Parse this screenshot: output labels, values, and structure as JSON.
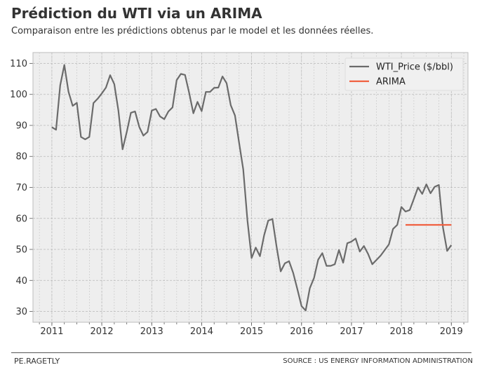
{
  "header": {
    "title": "Prédiction du WTI via un ARIMA",
    "subtitle": "Comparaison entre les prédictions obtenus par le model et les données réelles."
  },
  "footer": {
    "left": "PE.RAGETLY",
    "right": "SOURCE : US ENERGY INFORMATION ADMINISTRATION"
  },
  "chart_data": {
    "type": "line",
    "title": "Prédiction du WTI via un ARIMA",
    "subtitle": "Comparaison entre les prédictions obtenus par le model et les données réelles.",
    "xlim": [
      "2010-08-15",
      "2019-05-01"
    ],
    "ylim": [
      26.5,
      113.5
    ],
    "x_ticks": [
      "2011",
      "2012",
      "2013",
      "2014",
      "2015",
      "2016",
      "2017",
      "2018",
      "2019"
    ],
    "y_ticks": [
      30,
      40,
      50,
      60,
      70,
      80,
      90,
      100,
      110
    ],
    "grid": true,
    "legend_position": "top-right",
    "series": [
      {
        "name": "WTI_Price ($/bbl)",
        "color": "#6b6b6b",
        "x": [
          "2011-01",
          "2011-02",
          "2011-03",
          "2011-04",
          "2011-05",
          "2011-06",
          "2011-07",
          "2011-08",
          "2011-09",
          "2011-10",
          "2011-11",
          "2011-12",
          "2012-01",
          "2012-02",
          "2012-03",
          "2012-04",
          "2012-05",
          "2012-06",
          "2012-07",
          "2012-08",
          "2012-09",
          "2012-10",
          "2012-11",
          "2012-12",
          "2013-01",
          "2013-02",
          "2013-03",
          "2013-04",
          "2013-05",
          "2013-06",
          "2013-07",
          "2013-08",
          "2013-09",
          "2013-10",
          "2013-11",
          "2013-12",
          "2014-01",
          "2014-02",
          "2014-03",
          "2014-04",
          "2014-05",
          "2014-06",
          "2014-07",
          "2014-08",
          "2014-09",
          "2014-10",
          "2014-11",
          "2014-12",
          "2015-01",
          "2015-02",
          "2015-03",
          "2015-04",
          "2015-05",
          "2015-06",
          "2015-07",
          "2015-08",
          "2015-09",
          "2015-10",
          "2015-11",
          "2015-12",
          "2016-01",
          "2016-02",
          "2016-03",
          "2016-04",
          "2016-05",
          "2016-06",
          "2016-07",
          "2016-08",
          "2016-09",
          "2016-10",
          "2016-11",
          "2016-12",
          "2017-01",
          "2017-02",
          "2017-03",
          "2017-04",
          "2017-05",
          "2017-06",
          "2017-07",
          "2017-08",
          "2017-09",
          "2017-10",
          "2017-11",
          "2017-12",
          "2018-01",
          "2018-02",
          "2018-03",
          "2018-04",
          "2018-05",
          "2018-06",
          "2018-07",
          "2018-08",
          "2018-09",
          "2018-10",
          "2018-11",
          "2018-12",
          "2019-01"
        ],
        "values": [
          89.4,
          88.6,
          102.9,
          109.5,
          100.9,
          96.3,
          97.3,
          86.3,
          85.5,
          86.3,
          97.2,
          98.6,
          100.3,
          102.2,
          106.2,
          103.3,
          94.7,
          82.3,
          87.9,
          94.1,
          94.5,
          89.5,
          86.7,
          87.9,
          94.8,
          95.3,
          92.9,
          92.0,
          94.5,
          95.8,
          104.6,
          106.6,
          106.3,
          100.5,
          93.9,
          97.6,
          94.6,
          100.8,
          100.8,
          102.1,
          102.2,
          105.8,
          103.6,
          96.5,
          93.2,
          84.4,
          75.8,
          59.3,
          47.2,
          50.6,
          47.8,
          54.5,
          59.3,
          59.8,
          50.9,
          42.9,
          45.5,
          46.2,
          42.4,
          37.2,
          31.7,
          30.3,
          37.5,
          40.8,
          46.7,
          48.8,
          44.7,
          44.7,
          45.2,
          49.8,
          45.7,
          52.0,
          52.5,
          53.5,
          49.3,
          51.1,
          48.5,
          45.2,
          46.6,
          48.0,
          49.8,
          51.6,
          56.6,
          57.9,
          63.7,
          62.2,
          62.7,
          66.3,
          70.0,
          67.9,
          71.0,
          68.1,
          70.2,
          70.8,
          57.0,
          49.5,
          51.4
        ]
      },
      {
        "name": "ARIMA",
        "color": "#f06040",
        "x": [
          "2018-02",
          "2018-03",
          "2018-04",
          "2018-05",
          "2018-06",
          "2018-07",
          "2018-08",
          "2018-09",
          "2018-10",
          "2018-11",
          "2018-12",
          "2019-01"
        ],
        "values": [
          57.9,
          57.9,
          57.9,
          57.9,
          57.9,
          57.9,
          57.9,
          57.9,
          57.9,
          57.9,
          57.9,
          57.9
        ]
      }
    ]
  }
}
